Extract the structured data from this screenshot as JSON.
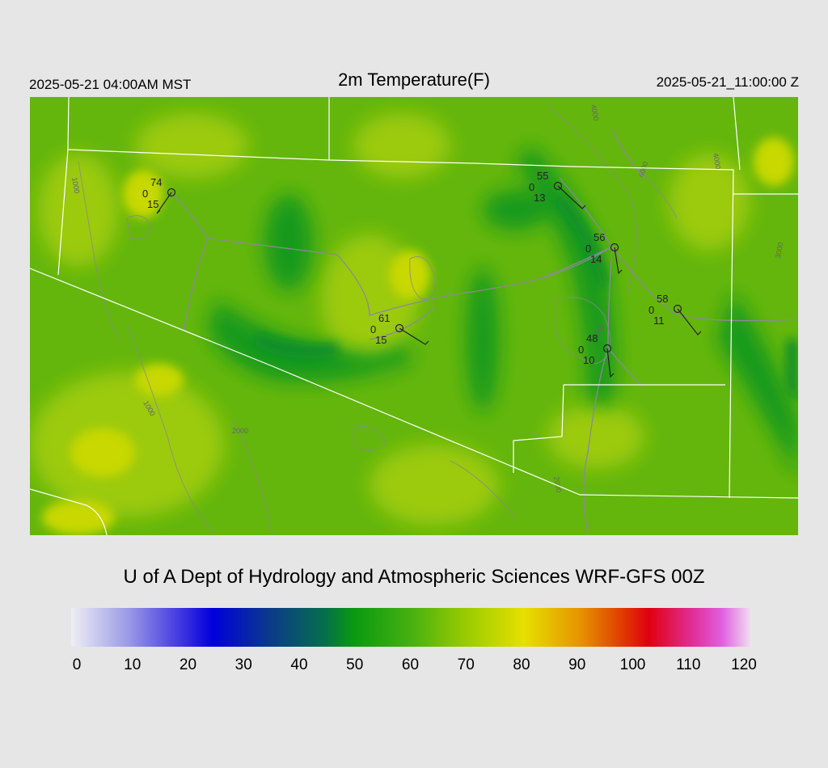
{
  "header": {
    "local_time": "2025-05-21 04:00AM MST",
    "title": "2m Temperature(F)",
    "utc_time": "2025-05-21_11:00:00 Z"
  },
  "credit": "U of A Dept of Hydrology and Atmospheric Sciences WRF-GFS 00Z",
  "colorbar": {
    "min": 0,
    "max": 120,
    "tick_labels": [
      "0",
      "10",
      "20",
      "30",
      "40",
      "50",
      "60",
      "70",
      "80",
      "90",
      "100",
      "110",
      "120"
    ],
    "stops": [
      {
        "value": 0,
        "color": "#eeeef4"
      },
      {
        "value": 10,
        "color": "#9b9be6"
      },
      {
        "value": 20,
        "color": "#3a2fe0"
      },
      {
        "value": 25,
        "color": "#0000dc"
      },
      {
        "value": 35,
        "color": "#0b3a8a"
      },
      {
        "value": 45,
        "color": "#05704a"
      },
      {
        "value": 50,
        "color": "#0a9a10"
      },
      {
        "value": 60,
        "color": "#47b010"
      },
      {
        "value": 70,
        "color": "#9ccc00"
      },
      {
        "value": 80,
        "color": "#e6e000"
      },
      {
        "value": 90,
        "color": "#e69300"
      },
      {
        "value": 97,
        "color": "#e04000"
      },
      {
        "value": 102,
        "color": "#e00010"
      },
      {
        "value": 110,
        "color": "#e0309a"
      },
      {
        "value": 115,
        "color": "#e060e0"
      },
      {
        "value": 120,
        "color": "#f0dcf0"
      }
    ]
  },
  "contour_labels": [
    "1000",
    "1000",
    "2000",
    "4000",
    "4000",
    "2000",
    "3000",
    "4000",
    "2000"
  ],
  "stations": [
    {
      "temp": "74",
      "cover": "0",
      "dewpoint": "15"
    },
    {
      "temp": "55",
      "cover": "0",
      "dewpoint": "13"
    },
    {
      "temp": "56",
      "cover": "0",
      "dewpoint": "14"
    },
    {
      "temp": "58",
      "cover": "0",
      "dewpoint": "11"
    },
    {
      "temp": "61",
      "cover": "0",
      "dewpoint": "15"
    },
    {
      "temp": "48",
      "cover": "0",
      "dewpoint": "10"
    }
  ]
}
